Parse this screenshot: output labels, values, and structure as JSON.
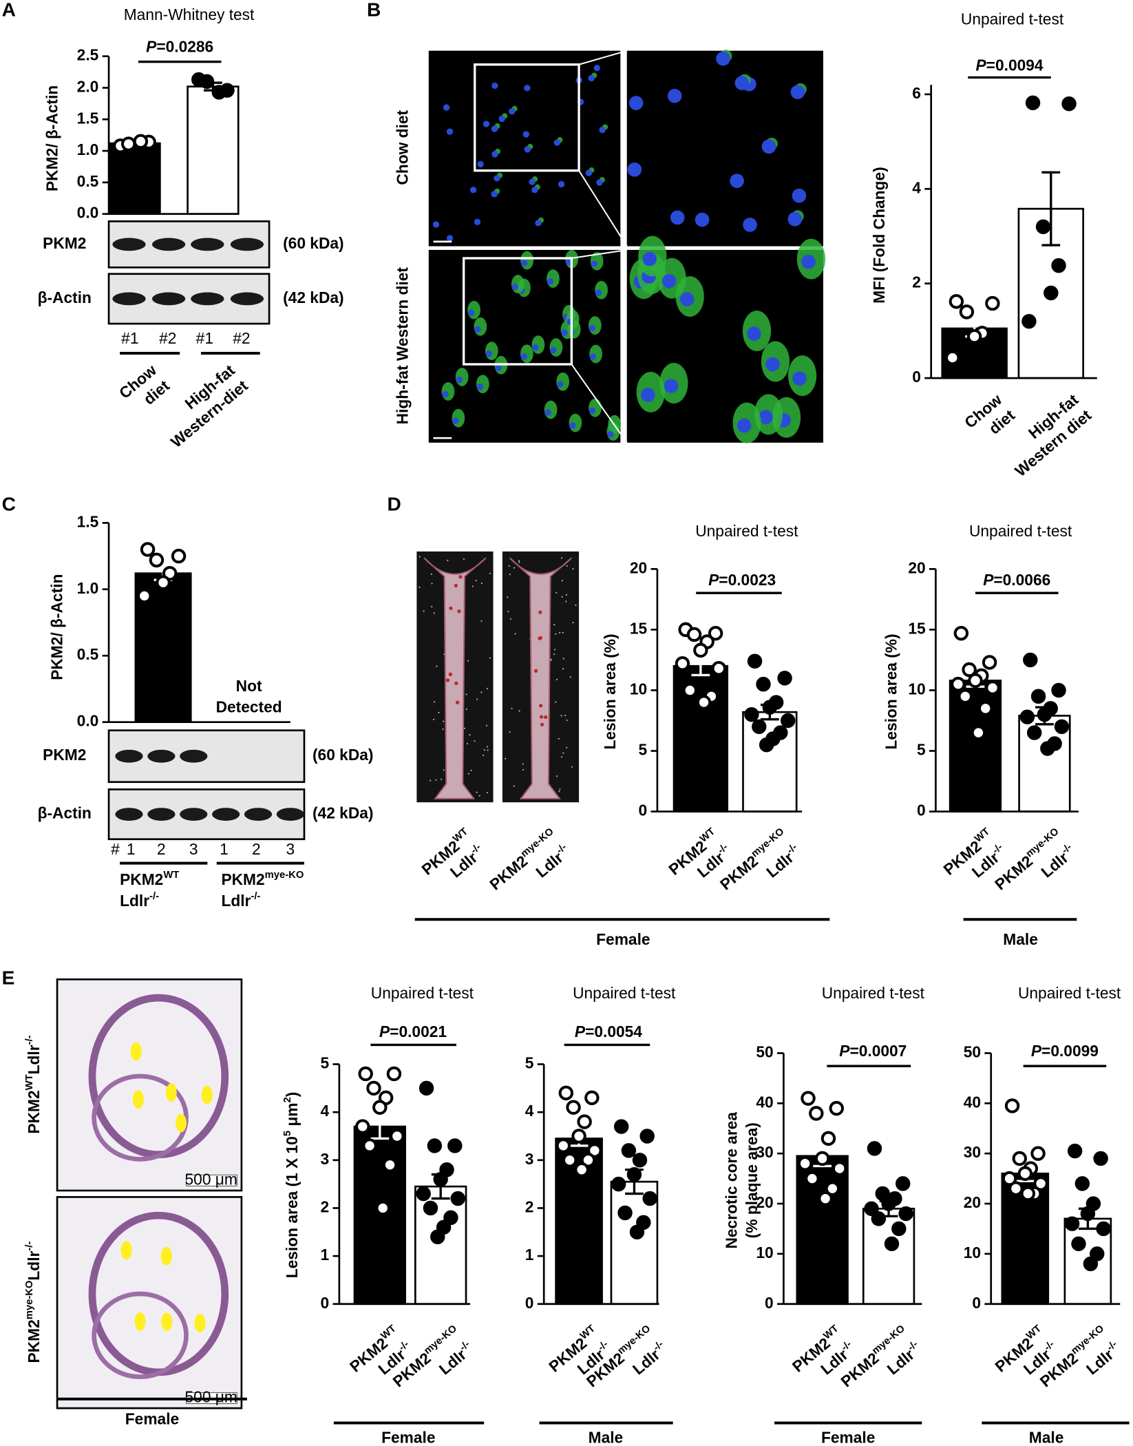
{
  "panels": [
    "A",
    "B",
    "C",
    "D",
    "E"
  ],
  "chart_data": [
    {
      "type": "bar",
      "title": "Mann-Whitney test",
      "ylabel": [
        [
          {
            "text": "PKM2/ β-Actin"
          }
        ]
      ],
      "annotation": [
        [
          {
            "text": "P",
            "italic": true
          },
          {
            "text": "=0.0286"
          }
        ]
      ],
      "categories": [
        [
          [
            {
              "text": "Chow"
            }
          ],
          [
            {
              "text": "diet"
            }
          ]
        ],
        [
          [
            {
              "text": "High-fat"
            }
          ],
          [
            {
              "text": "Western-diet"
            }
          ]
        ]
      ],
      "values": [
        1.12,
        2.02
      ],
      "errors": [
        0.03,
        0.06
      ],
      "points": [
        [
          1.08,
          1.14,
          1.11,
          1.15
        ],
        [
          2.13,
          1.96,
          2.1,
          1.93
        ]
      ],
      "colors": [
        "#000000",
        "#ffffff"
      ],
      "marker_fills": [
        "#ffffff",
        "#000000"
      ],
      "ylim": [
        0,
        2.5
      ],
      "yticks": [
        {
          "value": 0,
          "label": "0.0"
        },
        0.5,
        {
          "value": 1,
          "label": "1.0"
        },
        1.5,
        {
          "value": 2,
          "label": "2.0"
        },
        2.5
      ]
    },
    {
      "type": "bar",
      "title": "Unpaired t-test",
      "ylabel": [
        [
          {
            "text": "MFI (Fold Change)"
          }
        ]
      ],
      "annotation": [
        [
          {
            "text": "P",
            "italic": true
          },
          {
            "text": "=0.0094"
          }
        ]
      ],
      "categories": [
        [
          [
            {
              "text": "Chow"
            }
          ],
          [
            {
              "text": "diet"
            }
          ]
        ],
        [
          [
            {
              "text": "High-fat"
            }
          ],
          [
            {
              "text": "Western diet"
            }
          ]
        ]
      ],
      "values": [
        1.05,
        3.58
      ],
      "errors": [
        0.17,
        0.77
      ],
      "points": [
        [
          1.62,
          1.58,
          1.4,
          0.95,
          0.88,
          0.43
        ],
        [
          5.82,
          5.8,
          3.2,
          2.38,
          1.8,
          1.2
        ]
      ],
      "colors": [
        "#000000",
        "#ffffff"
      ],
      "marker_fills": [
        "#ffffff",
        "#000000"
      ],
      "ylim": [
        0,
        6.2
      ],
      "yticks": [
        0,
        2,
        4,
        6
      ]
    },
    {
      "type": "bar",
      "ylabel": [
        [
          {
            "text": "PKM2/ β-Actin"
          }
        ]
      ],
      "annotation": [
        [
          {
            "text": "Not"
          }
        ],
        [
          {
            "text": "Detected"
          }
        ]
      ],
      "categories": [
        [
          [
            {
              "text": "PKM2"
            },
            {
              "text": "WT",
              "sup": true
            }
          ],
          [
            {
              "text": "Ldlr"
            },
            {
              "text": "-/-",
              "sup": true
            }
          ]
        ],
        [
          [
            {
              "text": "PKM2"
            },
            {
              "text": "mye-KO",
              "sup": true
            }
          ],
          [
            {
              "text": "Ldlr"
            },
            {
              "text": "-/-",
              "sup": true
            }
          ]
        ]
      ],
      "values": [
        1.12,
        0
      ],
      "errors": [
        0.05,
        null
      ],
      "points": [
        [
          1.3,
          1.25,
          1.22,
          1.12,
          1.05,
          0.95
        ],
        []
      ],
      "colors": [
        "#000000",
        "#ffffff"
      ],
      "marker_fills": [
        "#ffffff",
        "#000000"
      ],
      "ylim": [
        0,
        1.5
      ],
      "yticks": [
        {
          "value": 0,
          "label": "0.0"
        },
        0.5,
        {
          "value": 1,
          "label": "1.0"
        },
        1.5
      ]
    },
    {
      "type": "bar",
      "title": "Unpaired t-test",
      "ylabel": [
        [
          {
            "text": "Lesion area (%)"
          }
        ]
      ],
      "annotation": [
        [
          {
            "text": "P",
            "italic": true
          },
          {
            "text": "=0.0023"
          }
        ]
      ],
      "categories": [
        [
          [
            {
              "text": "PKM2"
            },
            {
              "text": "WT",
              "sup": true
            }
          ],
          [
            {
              "text": "Ldlr"
            },
            {
              "text": "-/-",
              "sup": true
            }
          ]
        ],
        [
          [
            {
              "text": "PKM2"
            },
            {
              "text": "mye-KO",
              "sup": true
            }
          ],
          [
            {
              "text": "Ldlr"
            },
            {
              "text": "-/-",
              "sup": true
            }
          ]
        ]
      ],
      "values": [
        12.0,
        8.2
      ],
      "errors": [
        0.75,
        0.6
      ],
      "points": [
        [
          15.0,
          14.7,
          14.6,
          14.0,
          13.3,
          12.2,
          11.8,
          10.0,
          9.5,
          9.0
        ],
        [
          12.4,
          11.0,
          10.5,
          9.0,
          8.6,
          8.0,
          7.5,
          7.0,
          6.5,
          6.0,
          5.5
        ]
      ],
      "colors": [
        "#000000",
        "#ffffff"
      ],
      "marker_fills": [
        "#ffffff",
        "#000000"
      ],
      "ylim": [
        0,
        20
      ],
      "yticks": [
        0,
        5,
        10,
        15,
        20
      ],
      "group_label": "Female"
    },
    {
      "type": "bar",
      "title": "Unpaired t-test",
      "ylabel": [
        [
          {
            "text": "Lesion area (%)"
          }
        ]
      ],
      "annotation": [
        [
          {
            "text": "P",
            "italic": true
          },
          {
            "text": "=0.0066"
          }
        ]
      ],
      "categories": [
        [
          [
            {
              "text": "PKM2"
            },
            {
              "text": "WT",
              "sup": true
            }
          ],
          [
            {
              "text": "Ldlr"
            },
            {
              "text": "-/-",
              "sup": true
            }
          ]
        ],
        [
          [
            {
              "text": "PKM2"
            },
            {
              "text": "mye-KO",
              "sup": true
            }
          ],
          [
            {
              "text": "Ldlr"
            },
            {
              "text": "-/-",
              "sup": true
            }
          ]
        ]
      ],
      "values": [
        10.8,
        7.9
      ],
      "errors": [
        0.5,
        0.7
      ],
      "points": [
        [
          14.7,
          12.3,
          11.7,
          11.2,
          10.8,
          10.5,
          10.2,
          9.5,
          8.5,
          6.5
        ],
        [
          12.5,
          10.0,
          9.5,
          8.5,
          8.0,
          7.8,
          7.0,
          6.5,
          5.6,
          5.2
        ]
      ],
      "colors": [
        "#000000",
        "#ffffff"
      ],
      "marker_fills": [
        "#ffffff",
        "#000000"
      ],
      "ylim": [
        0,
        20
      ],
      "yticks": [
        0,
        5,
        10,
        15,
        20
      ],
      "group_label": "Male"
    },
    {
      "type": "bar",
      "title": "Unpaired t-test",
      "ylabel": [
        [
          {
            "text": "Lesion area (1 X 10"
          },
          {
            "text": "5",
            "sup": true
          },
          {
            "text": " μm"
          },
          {
            "text": "2",
            "sup": true
          },
          {
            "text": ")"
          }
        ]
      ],
      "annotation": [
        [
          {
            "text": "P",
            "italic": true
          },
          {
            "text": "=0.0021"
          }
        ]
      ],
      "categories": [
        [
          [
            {
              "text": "PKM2"
            },
            {
              "text": "WT",
              "sup": true
            }
          ],
          [
            {
              "text": "Ldlr"
            },
            {
              "text": "-/-",
              "sup": true
            }
          ]
        ],
        [
          [
            {
              "text": "PKM2"
            },
            {
              "text": "mye-KO",
              "sup": true
            }
          ],
          [
            {
              "text": "Ldlr"
            },
            {
              "text": "-/-",
              "sup": true
            }
          ]
        ]
      ],
      "values": [
        3.7,
        2.45
      ],
      "errors": [
        0.25,
        0.25
      ],
      "points": [
        [
          4.8,
          4.8,
          4.5,
          4.3,
          4.1,
          3.7,
          3.5,
          3.3,
          2.9,
          2.0
        ],
        [
          4.5,
          3.3,
          3.3,
          2.8,
          2.6,
          2.3,
          2.2,
          2.0,
          1.8,
          1.6,
          1.4
        ]
      ],
      "colors": [
        "#000000",
        "#ffffff"
      ],
      "marker_fills": [
        "#ffffff",
        "#000000"
      ],
      "ylim": [
        0,
        5
      ],
      "yticks": [
        0,
        1,
        2,
        3,
        4,
        5
      ],
      "group_label": "Female"
    },
    {
      "type": "bar",
      "title": "Unpaired t-test",
      "annotation": [
        [
          {
            "text": "P",
            "italic": true
          },
          {
            "text": "=0.0054"
          }
        ]
      ],
      "categories": [
        [
          [
            {
              "text": "PKM2"
            },
            {
              "text": "WT",
              "sup": true
            }
          ],
          [
            {
              "text": "Ldlr"
            },
            {
              "text": "-/-",
              "sup": true
            }
          ]
        ],
        [
          [
            {
              "text": "PKM2"
            },
            {
              "text": "mye-KO",
              "sup": true
            }
          ],
          [
            {
              "text": "Ldlr"
            },
            {
              "text": "-/-",
              "sup": true
            }
          ]
        ]
      ],
      "values": [
        3.45,
        2.55
      ],
      "errors": [
        0.15,
        0.25
      ],
      "points": [
        [
          4.4,
          4.3,
          4.1,
          3.8,
          3.5,
          3.3,
          3.2,
          3.0,
          3.0,
          2.8
        ],
        [
          3.7,
          3.5,
          3.2,
          3.0,
          2.7,
          2.5,
          2.2,
          1.9,
          1.7,
          1.5
        ]
      ],
      "colors": [
        "#000000",
        "#ffffff"
      ],
      "marker_fills": [
        "#ffffff",
        "#000000"
      ],
      "ylim": [
        0,
        5
      ],
      "yticks": [
        0,
        1,
        2,
        3,
        4,
        5
      ],
      "group_label": "Male"
    },
    {
      "type": "bar",
      "title": "Unpaired t-test",
      "ylabel": [
        [
          {
            "text": "Necrotic core area"
          }
        ],
        [
          {
            "text": "(% plaque area)"
          }
        ]
      ],
      "annotation": [
        [
          {
            "text": "P",
            "italic": true
          },
          {
            "text": "=0.0007"
          }
        ]
      ],
      "categories": [
        [
          [
            {
              "text": "PKM2"
            },
            {
              "text": "WT",
              "sup": true
            }
          ],
          [
            {
              "text": "Ldlr"
            },
            {
              "text": "-/-",
              "sup": true
            }
          ]
        ],
        [
          [
            {
              "text": "PKM2"
            },
            {
              "text": "mye-KO",
              "sup": true
            }
          ],
          [
            {
              "text": "Ldlr"
            },
            {
              "text": "-/-",
              "sup": true
            }
          ]
        ]
      ],
      "values": [
        29.5,
        19.0
      ],
      "errors": [
        2.0,
        1.5
      ],
      "points": [
        [
          41,
          39,
          38,
          33,
          29,
          28,
          27,
          25,
          23,
          21
        ],
        [
          31,
          24,
          22,
          21,
          20,
          19,
          18,
          17,
          15,
          12
        ]
      ],
      "colors": [
        "#000000",
        "#ffffff"
      ],
      "marker_fills": [
        "#ffffff",
        "#000000"
      ],
      "ylim": [
        0,
        50
      ],
      "yticks": [
        0,
        10,
        20,
        30,
        40,
        50
      ],
      "group_label": "Female"
    },
    {
      "type": "bar",
      "title": "Unpaired t-test",
      "annotation": [
        [
          {
            "text": "P",
            "italic": true
          },
          {
            "text": "=0.0099"
          }
        ]
      ],
      "categories": [
        [
          [
            {
              "text": "PKM2"
            },
            {
              "text": "WT",
              "sup": true
            }
          ],
          [
            {
              "text": "Ldlr"
            },
            {
              "text": "-/-",
              "sup": true
            }
          ]
        ],
        [
          [
            {
              "text": "PKM2"
            },
            {
              "text": "mye-KO",
              "sup": true
            }
          ],
          [
            {
              "text": "Ldlr"
            },
            {
              "text": "-/-",
              "sup": true
            }
          ]
        ]
      ],
      "values": [
        26.0,
        17.0
      ],
      "errors": [
        1.5,
        2.0
      ],
      "points": [
        [
          39.5,
          30,
          29,
          27,
          26,
          25,
          24,
          23,
          22,
          22
        ],
        [
          30.5,
          29,
          24,
          20,
          18,
          16,
          15,
          12,
          10,
          8
        ]
      ],
      "colors": [
        "#000000",
        "#ffffff"
      ],
      "marker_fills": [
        "#ffffff",
        "#000000"
      ],
      "ylim": [
        0,
        50
      ],
      "yticks": [
        0,
        10,
        20,
        30,
        40,
        50
      ],
      "group_label": "Male"
    }
  ],
  "blots": [
    {
      "rows": [
        {
          "label": "PKM2",
          "size": "(60 kDa)"
        },
        {
          "label": "β-Actin",
          "size": "(42 kDa)"
        }
      ],
      "lanes": [
        "#1",
        "#2",
        "#1",
        "#2"
      ]
    },
    {
      "rows": [
        {
          "label": "PKM2",
          "size": "(60 kDa)"
        },
        {
          "label": "β-Actin",
          "size": "(42 kDa)"
        }
      ],
      "lanes": [
        "#",
        "1",
        "2",
        "3",
        "1",
        "2",
        "3"
      ]
    }
  ],
  "micrograph_labels": [
    "Chow diet",
    "High-fat Western diet"
  ],
  "aorta_labels": [
    [
      [
        {
          "text": "PKM2"
        },
        {
          "text": "WT",
          "sup": true
        }
      ],
      [
        {
          "text": "Ldlr"
        },
        {
          "text": "-/-",
          "sup": true
        }
      ]
    ],
    [
      [
        {
          "text": "PKM2"
        },
        {
          "text": "mye-KO",
          "sup": true
        }
      ],
      [
        {
          "text": "Ldlr"
        },
        {
          "text": "-/-",
          "sup": true
        }
      ]
    ]
  ],
  "histology_labels": [
    [
      [
        {
          "text": "PKM2"
        },
        {
          "text": "WT",
          "sup": true
        },
        {
          "text": "Ldlr"
        },
        {
          "text": "-/-",
          "sup": true
        }
      ]
    ],
    [
      [
        {
          "text": "PKM2"
        },
        {
          "text": "mye-KO",
          "sup": true
        },
        {
          "text": "Ldlr"
        },
        {
          "text": "-/-",
          "sup": true
        }
      ]
    ]
  ],
  "histology_scale": "500 μm",
  "histology_group": "Female"
}
